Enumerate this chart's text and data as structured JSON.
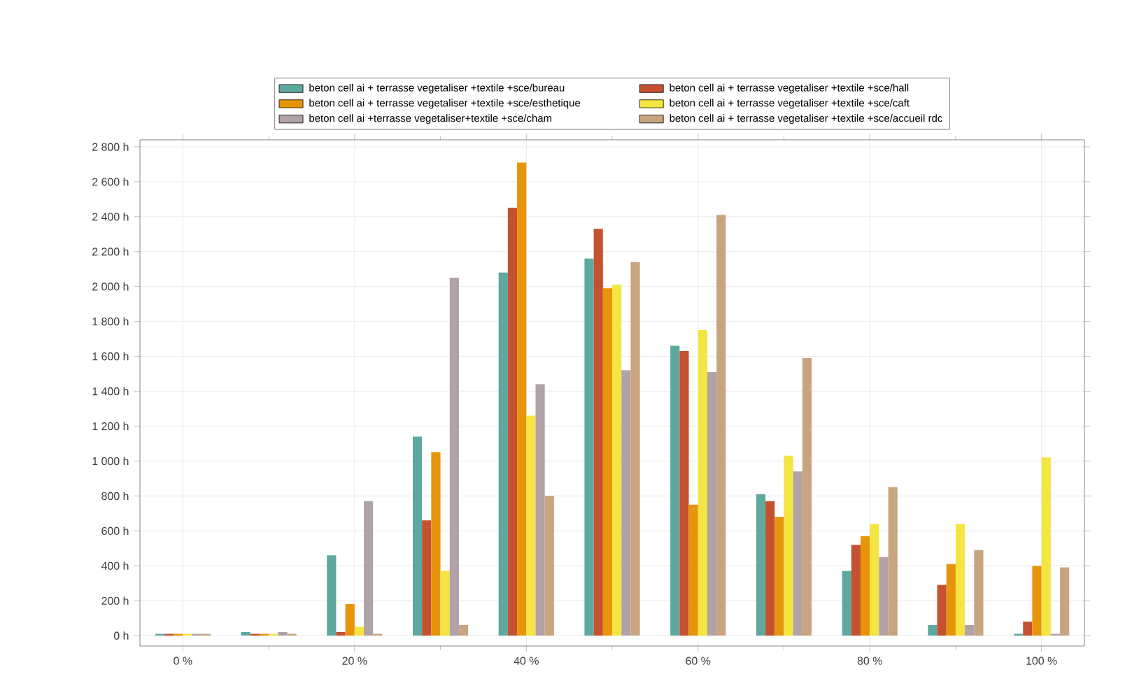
{
  "chart_data": {
    "type": "bar",
    "categories": [
      "0 %",
      null,
      "20 %",
      null,
      "40 %",
      null,
      "60 %",
      null,
      "80 %",
      null,
      "100 %"
    ],
    "series": [
      {
        "name": "beton cell ai + terrasse vegetaliser +textile +sce/bureau",
        "color": "#5fa8a0",
        "values": [
          10,
          20,
          460,
          1140,
          2080,
          2160,
          1660,
          810,
          370,
          60,
          10
        ]
      },
      {
        "name": "beton cell ai + terrasse vegetaliser +textile +sce/hall",
        "color": "#c4512f",
        "values": [
          10,
          10,
          20,
          660,
          2450,
          2330,
          1630,
          770,
          520,
          290,
          80
        ]
      },
      {
        "name": "beton cell ai + terrasse vegetaliser +textile +sce/esthetique",
        "color": "#e8940a",
        "values": [
          10,
          10,
          180,
          1050,
          2710,
          1990,
          750,
          680,
          570,
          410,
          400
        ]
      },
      {
        "name": "beton cell ai + terrasse vegetaliser +textile +sce/caft",
        "color": "#f4e542",
        "values": [
          10,
          10,
          50,
          370,
          1260,
          2010,
          1750,
          1030,
          640,
          640,
          1020
        ]
      },
      {
        "name": "beton cell ai +terrasse vegetaliser+textile +sce/cham",
        "color": "#b0a2a6",
        "values": [
          10,
          20,
          770,
          2050,
          1440,
          1520,
          1510,
          940,
          450,
          60,
          10
        ]
      },
      {
        "name": "beton cell ai + terrasse vegetaliser +textile +sce/accueil rdc",
        "color": "#c8a480",
        "values": [
          10,
          10,
          10,
          60,
          800,
          2140,
          2410,
          1590,
          850,
          490,
          390
        ]
      }
    ],
    "ylim": [
      -60,
      2840
    ],
    "yticks": [
      {
        "value": 0,
        "label": "0 h"
      },
      {
        "value": 200,
        "label": "200 h"
      },
      {
        "value": 400,
        "label": "400 h"
      },
      {
        "value": 600,
        "label": "600 h"
      },
      {
        "value": 800,
        "label": "800 h"
      },
      {
        "value": 1000,
        "label": "1 000 h"
      },
      {
        "value": 1200,
        "label": "1 200 h"
      },
      {
        "value": 1400,
        "label": "1 400 h"
      },
      {
        "value": 1600,
        "label": "1 600 h"
      },
      {
        "value": 1800,
        "label": "1 800 h"
      },
      {
        "value": 2000,
        "label": "2 000 h"
      },
      {
        "value": 2200,
        "label": "2 200 h"
      },
      {
        "value": 2400,
        "label": "2 400 h"
      },
      {
        "value": 2600,
        "label": "2 600 h"
      },
      {
        "value": 2800,
        "label": "2 800 h"
      }
    ],
    "grid": true,
    "legend": "top"
  }
}
